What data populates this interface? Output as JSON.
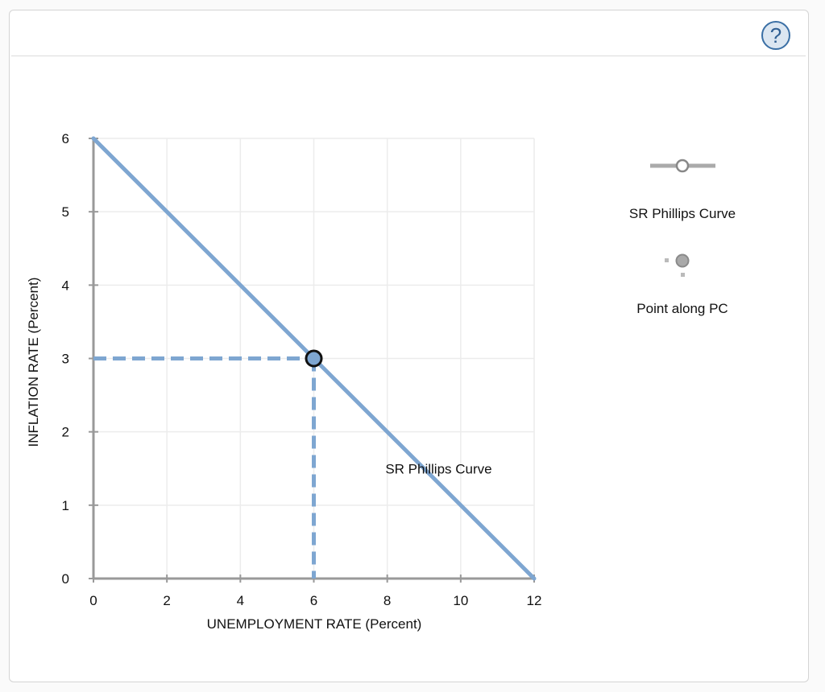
{
  "help_button": {
    "label": "?"
  },
  "chart_data": {
    "type": "line",
    "title": "",
    "xlabel": "UNEMPLOYMENT RATE (Percent)",
    "ylabel": "INFLATION RATE (Percent)",
    "xlim": [
      0,
      12
    ],
    "ylim": [
      0,
      6
    ],
    "x_ticks": [
      "0",
      "2",
      "4",
      "6",
      "8",
      "10",
      "12"
    ],
    "y_ticks": [
      "0",
      "1",
      "2",
      "3",
      "4",
      "5",
      "6"
    ],
    "grid": true,
    "legend_position": "right",
    "series": [
      {
        "name": "SR Phillips Curve",
        "x": [
          0,
          12
        ],
        "y": [
          6,
          0
        ],
        "color": "#7ea6d1",
        "label": "SR Phillips Curve",
        "label_at": [
          9.4,
          1.5
        ]
      },
      {
        "name": "Point along PC",
        "x": [
          6
        ],
        "y": [
          3
        ],
        "marker": "circle",
        "color": "#7ea6d1",
        "guides": "dashed"
      }
    ]
  },
  "legend": {
    "items": [
      {
        "label": "SR Phillips Curve",
        "icon": "line-with-hollow-circle-icon"
      },
      {
        "label": "Point along PC",
        "icon": "point-marker-icon"
      }
    ]
  },
  "colors": {
    "curve": "#7ea6d1",
    "axis": "#999999",
    "grid": "#ececec",
    "help": "#3a6fa5"
  }
}
